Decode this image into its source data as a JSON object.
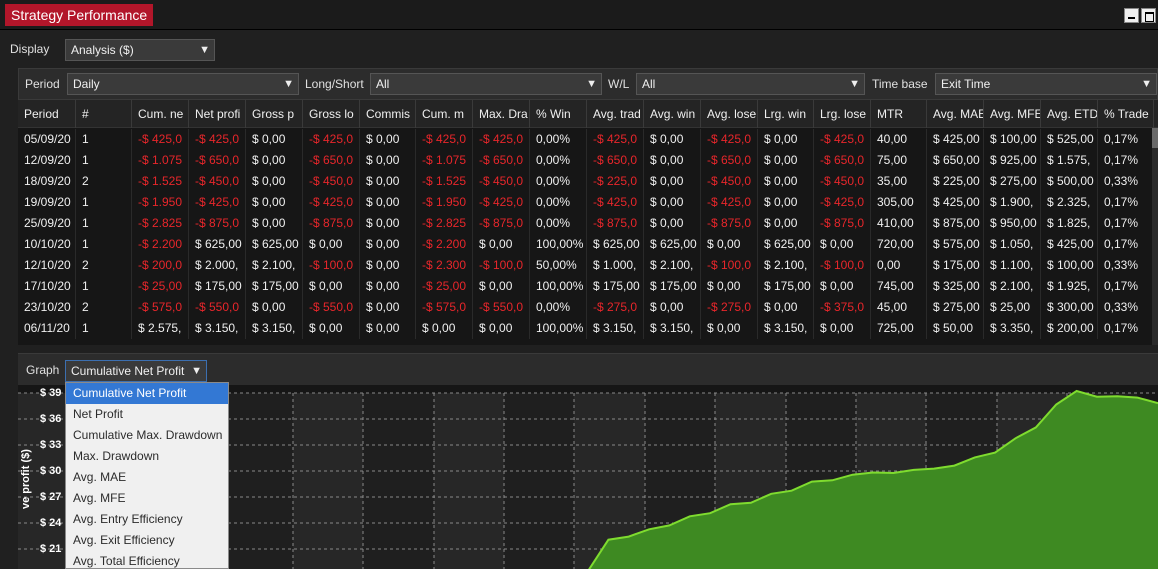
{
  "window": {
    "title": "Strategy Performance"
  },
  "display": {
    "label": "Display",
    "value": "Analysis ($)"
  },
  "filters": [
    {
      "label": "Period",
      "value": "Daily"
    },
    {
      "label": "Long/Short",
      "value": "All"
    },
    {
      "label": "W/L",
      "value": "All"
    },
    {
      "label": "Time base",
      "value": "Exit Time"
    }
  ],
  "table": {
    "columns": [
      "Period",
      "#",
      "Cum. ne",
      "Net profi",
      "Gross p",
      "Gross lo",
      "Commis",
      "Cum. m",
      "Max. Dra",
      "% Win",
      "Avg. trad",
      "Avg. win",
      "Avg. lose",
      "Lrg. win",
      "Lrg. lose",
      "MTR",
      "Avg. MAE",
      "Avg. MFE",
      "Avg. ETD",
      "% Trade"
    ],
    "rows": [
      [
        "05/09/20",
        "1",
        "-$ 425,0",
        "-$ 425,0",
        "$ 0,00",
        "-$ 425,0",
        "$ 0,00",
        "-$ 425,0",
        "-$ 425,0",
        "0,00%",
        "-$ 425,0",
        "$ 0,00",
        "-$ 425,0",
        "$ 0,00",
        "-$ 425,0",
        "40,00",
        "$ 425,00",
        "$ 100,00",
        "$ 525,00",
        "0,17%"
      ],
      [
        "12/09/20",
        "1",
        "-$ 1.075",
        "-$ 650,0",
        "$ 0,00",
        "-$ 650,0",
        "$ 0,00",
        "-$ 1.075",
        "-$ 650,0",
        "0,00%",
        "-$ 650,0",
        "$ 0,00",
        "-$ 650,0",
        "$ 0,00",
        "-$ 650,0",
        "75,00",
        "$ 650,00",
        "$ 925,00",
        "$ 1.575,",
        "0,17%"
      ],
      [
        "18/09/20",
        "2",
        "-$ 1.525",
        "-$ 450,0",
        "$ 0,00",
        "-$ 450,0",
        "$ 0,00",
        "-$ 1.525",
        "-$ 450,0",
        "0,00%",
        "-$ 225,0",
        "$ 0,00",
        "-$ 450,0",
        "$ 0,00",
        "-$ 450,0",
        "35,00",
        "$ 225,00",
        "$ 275,00",
        "$ 500,00",
        "0,33%"
      ],
      [
        "19/09/20",
        "1",
        "-$ 1.950",
        "-$ 425,0",
        "$ 0,00",
        "-$ 425,0",
        "$ 0,00",
        "-$ 1.950",
        "-$ 425,0",
        "0,00%",
        "-$ 425,0",
        "$ 0,00",
        "-$ 425,0",
        "$ 0,00",
        "-$ 425,0",
        "305,00",
        "$ 425,00",
        "$ 1.900,",
        "$ 2.325,",
        "0,17%"
      ],
      [
        "25/09/20",
        "1",
        "-$ 2.825",
        "-$ 875,0",
        "$ 0,00",
        "-$ 875,0",
        "$ 0,00",
        "-$ 2.825",
        "-$ 875,0",
        "0,00%",
        "-$ 875,0",
        "$ 0,00",
        "-$ 875,0",
        "$ 0,00",
        "-$ 875,0",
        "410,00",
        "$ 875,00",
        "$ 950,00",
        "$ 1.825,",
        "0,17%"
      ],
      [
        "10/10/20",
        "1",
        "-$ 2.200",
        "$ 625,00",
        "$ 625,00",
        "$ 0,00",
        "$ 0,00",
        "-$ 2.200",
        "$ 0,00",
        "100,00%",
        "$ 625,00",
        "$ 625,00",
        "$ 0,00",
        "$ 625,00",
        "$ 0,00",
        "720,00",
        "$ 575,00",
        "$ 1.050,",
        "$ 425,00",
        "0,17%"
      ],
      [
        "12/10/20",
        "2",
        "-$ 200,0",
        "$ 2.000,",
        "$ 2.100,",
        "-$ 100,0",
        "$ 0,00",
        "-$ 2.300",
        "-$ 100,0",
        "50,00%",
        "$ 1.000,",
        "$ 2.100,",
        "-$ 100,0",
        "$ 2.100,",
        "-$ 100,0",
        "0,00",
        "$ 175,00",
        "$ 1.100,",
        "$ 100,00",
        "0,33%"
      ],
      [
        "17/10/20",
        "1",
        "-$ 25,00",
        "$ 175,00",
        "$ 175,00",
        "$ 0,00",
        "$ 0,00",
        "-$ 25,00",
        "$ 0,00",
        "100,00%",
        "$ 175,00",
        "$ 175,00",
        "$ 0,00",
        "$ 175,00",
        "$ 0,00",
        "745,00",
        "$ 325,00",
        "$ 2.100,",
        "$ 1.925,",
        "0,17%"
      ],
      [
        "23/10/20",
        "2",
        "-$ 575,0",
        "-$ 550,0",
        "$ 0,00",
        "-$ 550,0",
        "$ 0,00",
        "-$ 575,0",
        "-$ 550,0",
        "0,00%",
        "-$ 275,0",
        "$ 0,00",
        "-$ 275,0",
        "$ 0,00",
        "-$ 375,0",
        "45,00",
        "$ 275,00",
        "$ 25,00",
        "$ 300,00",
        "0,33%"
      ],
      [
        "06/11/20",
        "1",
        "$ 2.575,",
        "$ 3.150,",
        "$ 3.150,",
        "$ 0,00",
        "$ 0,00",
        "$ 0,00",
        "$ 0,00",
        "100,00%",
        "$ 3.150,",
        "$ 3.150,",
        "$ 0,00",
        "$ 3.150,",
        "$ 0,00",
        "725,00",
        "$ 50,00",
        "$ 3.350,",
        "$ 200,00",
        "0,17%"
      ]
    ]
  },
  "graph": {
    "label": "Graph",
    "selected": "Cumulative Net Profit",
    "options": [
      "Cumulative Net Profit",
      "Net Profit",
      "Cumulative Max. Drawdown",
      "Max. Drawdown",
      "Avg. MAE",
      "Avg. MFE",
      "Avg. Entry Efficiency",
      "Avg. Exit Efficiency",
      "Avg. Total Efficiency"
    ]
  },
  "chart_data": {
    "type": "area",
    "ylabel": "ve profit ($)",
    "y_ticks": [
      "$ 39",
      "$ 36",
      "$ 33",
      "$ 30",
      "$ 27",
      "$ 24",
      "$ 21"
    ],
    "grid": true,
    "colors": {
      "fill": "#3e8a22",
      "line": "#7fdc2f"
    },
    "series": [
      {
        "values": [
          21.0,
          21.9,
          22.6,
          23.1,
          23.9,
          24.6,
          25.3,
          26.0,
          26.5,
          27.2,
          27.9,
          28.6,
          29.1,
          29.4,
          30.0,
          29.6,
          30.3,
          30.1,
          30.8,
          31.4,
          32.3,
          33.6,
          35.2,
          37.5,
          39.4,
          38.4,
          38.8,
          38.3,
          38.0
        ]
      }
    ]
  }
}
